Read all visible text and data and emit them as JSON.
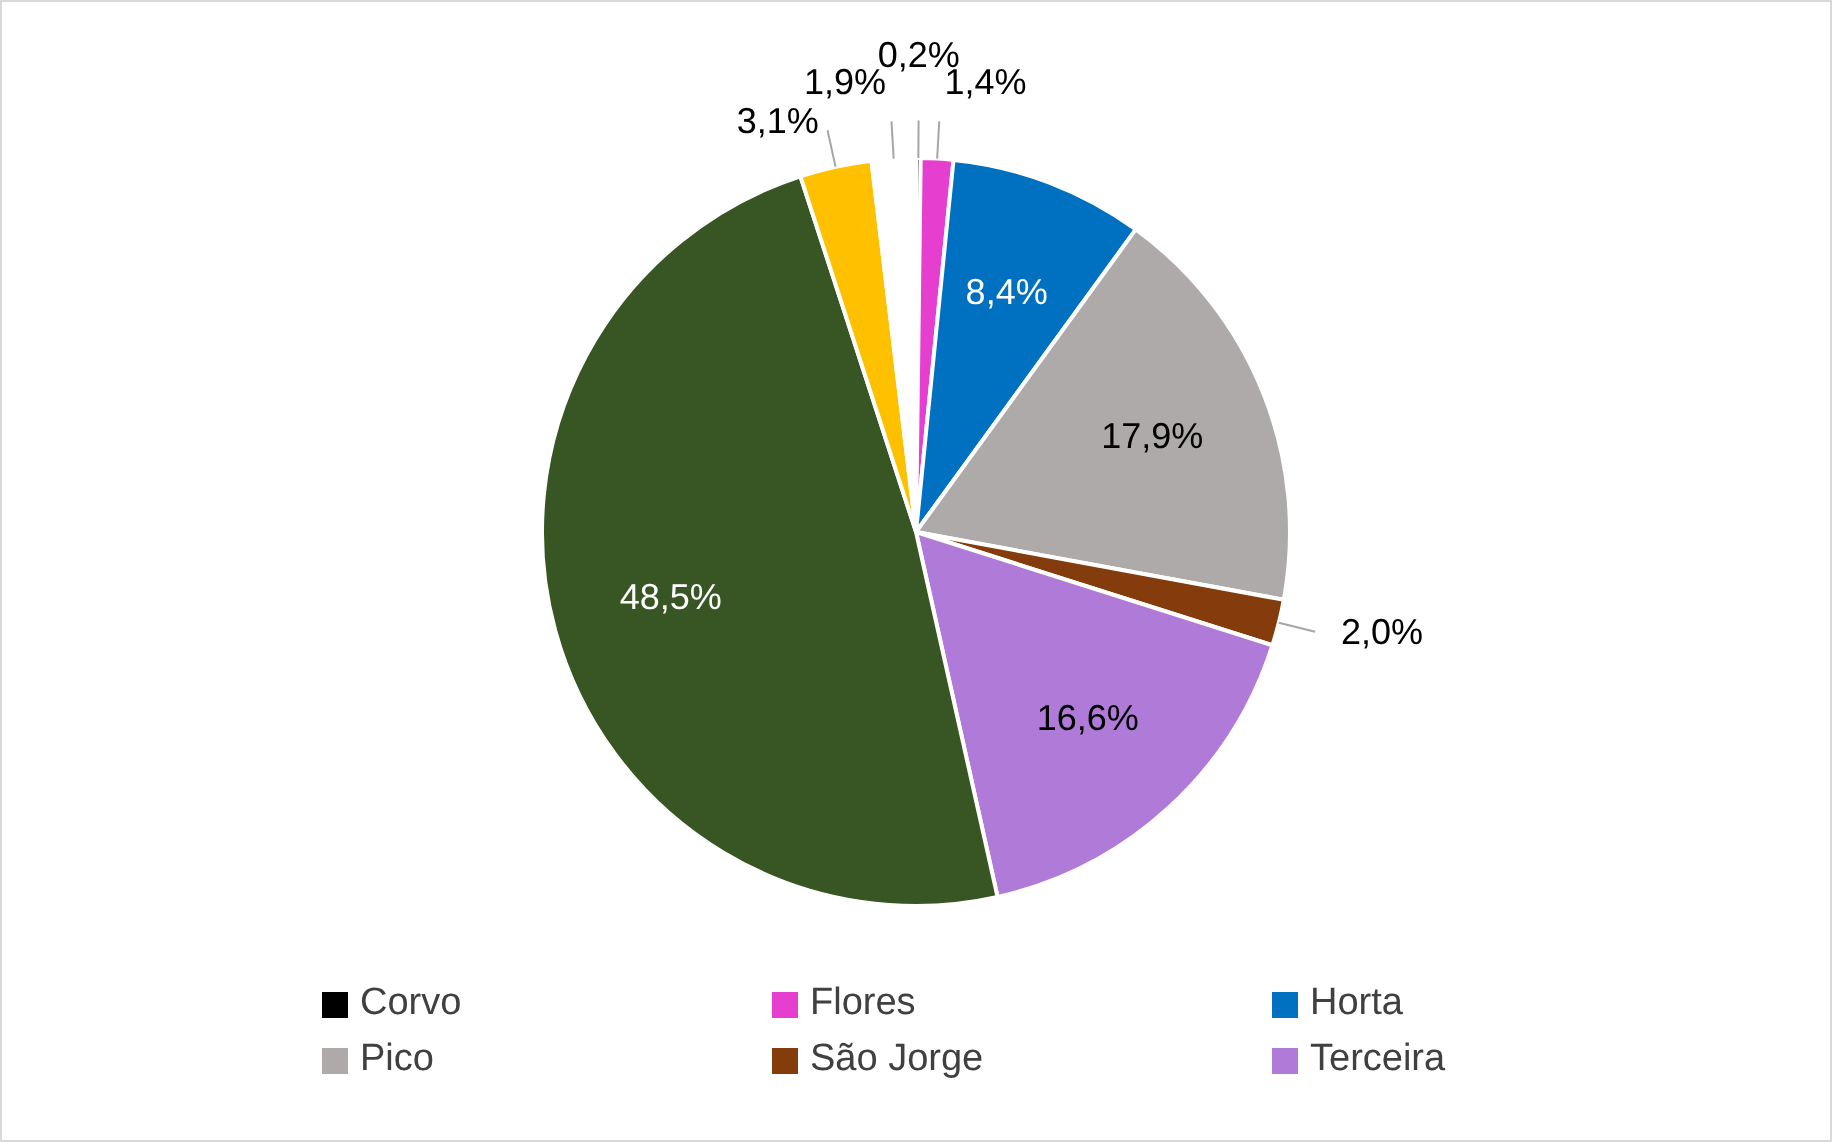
{
  "chart_data": {
    "type": "pie",
    "categories": [
      "Corvo",
      "Flores",
      "Horta",
      "Pico",
      "São Jorge",
      "Terceira",
      null,
      null,
      null
    ],
    "values": [
      0.2,
      1.4,
      8.4,
      17.9,
      2.0,
      16.6,
      48.5,
      3.1,
      1.9
    ],
    "value_labels": [
      "0,2%",
      "1,4%",
      "8,4%",
      "17,9%",
      "2,0%",
      "16,6%",
      "48,5%",
      "3,1%",
      "1,9%"
    ],
    "colors": [
      "#000000",
      "#e63fd0",
      "#0070c0",
      "#aeaaaa",
      "#843c0c",
      "#b07ad8",
      "#375623",
      "#ffc000",
      "#ffffff"
    ],
    "legend": "bottom"
  }
}
